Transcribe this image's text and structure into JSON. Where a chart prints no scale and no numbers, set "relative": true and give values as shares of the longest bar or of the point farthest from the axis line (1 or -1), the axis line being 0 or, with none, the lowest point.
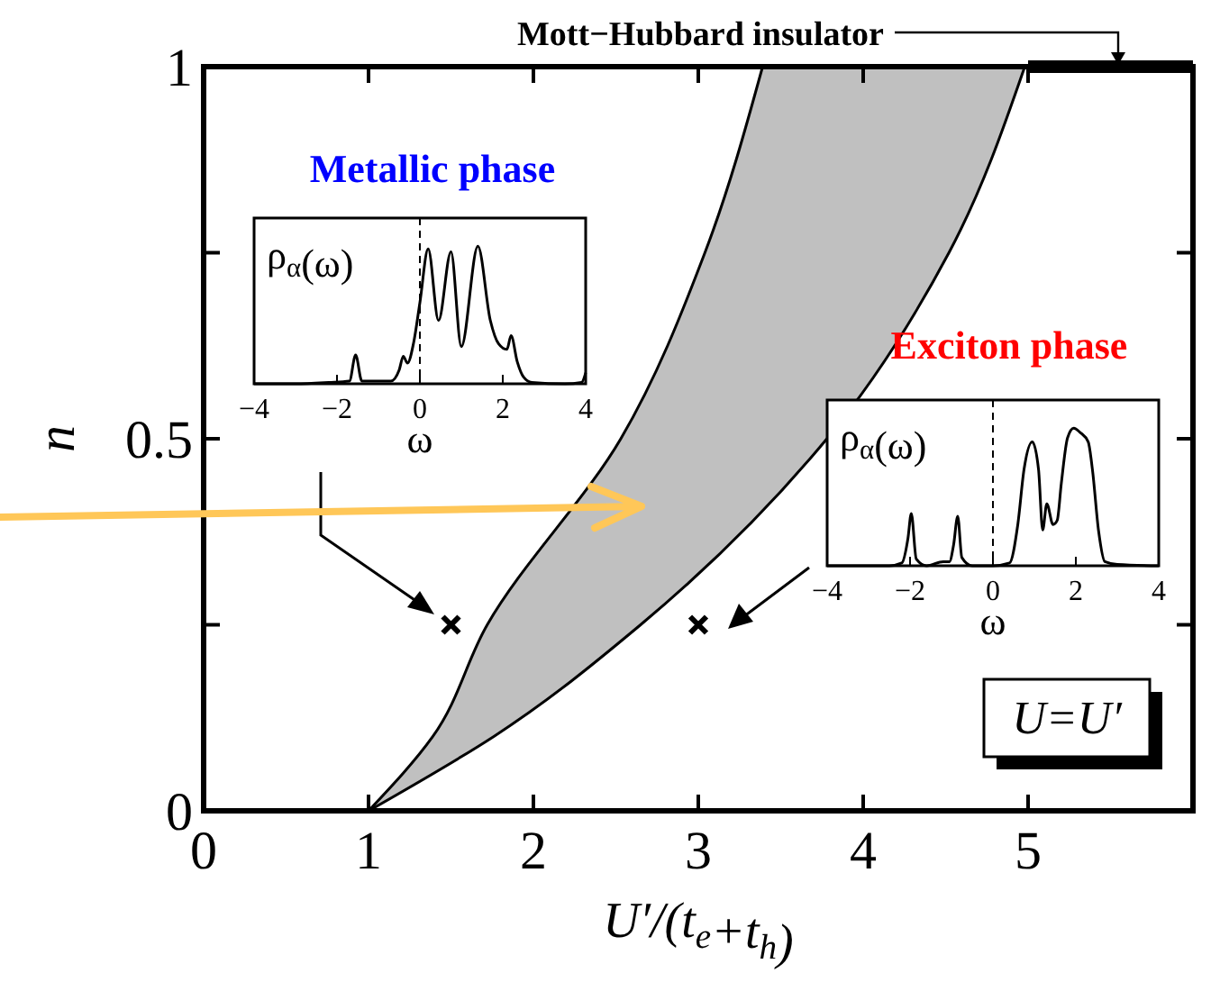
{
  "chart_data": [
    {
      "type": "line",
      "xlabel": "U′/(t$_{e}$+t$_{h}$)",
      "ylabel": "n",
      "xlim": [
        0,
        6
      ],
      "ylim": [
        0,
        1
      ],
      "xticks": [
        0,
        1,
        2,
        3,
        4,
        5
      ],
      "yticks": [
        0,
        {
          "value": 0.25,
          "label": null
        },
        0.5,
        {
          "value": 0.75,
          "label": null
        },
        1
      ],
      "series": [
        {
          "color": "#000000",
          "x": [
            1,
            1.39,
            1.72,
            2.53,
            3.04,
            3.39
          ],
          "values": [
            0,
            0.1,
            0.25,
            0.5,
            0.75,
            1
          ]
        },
        {
          "color": "#000000",
          "x": [
            1,
            1.76,
            2.65,
            3.78,
            4.52,
            4.98
          ],
          "values": [
            0,
            0.1,
            0.25,
            0.5,
            0.75,
            1
          ]
        },
        {
          "name": "Mott−Hubbard insulator",
          "color": "#000000",
          "x": [
            5,
            6
          ],
          "values": [
            1,
            1
          ]
        },
        {
          "type": "scatter",
          "marker": "cross",
          "color": "#000000",
          "x": [
            1.5,
            3
          ],
          "values": [
            0.25,
            0.25
          ]
        }
      ],
      "annotations": [
        "Metallic phase",
        "Exciton phase",
        "U=U′"
      ]
    },
    {
      "type": "line",
      "relative": true,
      "ylabel": "ρ$_{α}$(ω)",
      "xlabel": "ω",
      "xlim": [
        -4,
        4
      ],
      "xticks": [
        -4,
        -2,
        0,
        2,
        4
      ],
      "tick_labels": "x",
      "ref_lines": [
        {
          "axis": "x",
          "value": 0,
          "line_style": "dashed"
        }
      ],
      "series": [
        {
          "color": "#000000",
          "x": [
            -4,
            -3,
            -2.2,
            -1.7,
            -1.55,
            -1.4,
            -0.7,
            -0.5,
            -0.4,
            -0.3,
            -0.15,
            0,
            0.2,
            0.45,
            0.75,
            1.0,
            1.4,
            1.7,
            1.9,
            2.1,
            2.2,
            2.35,
            2.5,
            2.7,
            3.5,
            3.9,
            4
          ],
          "values": [
            0,
            0,
            0.01,
            0.02,
            0.21,
            0.02,
            0.02,
            0.1,
            0.2,
            0.15,
            0.3,
            0.59,
            0.98,
            0.46,
            0.96,
            0.27,
            1,
            0.46,
            0.29,
            0.25,
            0.35,
            0.16,
            0.05,
            0.01,
            0,
            0.01,
            0.08
          ]
        }
      ]
    },
    {
      "type": "line",
      "relative": true,
      "ylabel": "ρ$_{α}$(ω)",
      "xlabel": "ω",
      "xlim": [
        -4,
        4
      ],
      "xticks": [
        -4,
        -2,
        0,
        2,
        4
      ],
      "tick_labels": "x",
      "ref_lines": [
        {
          "axis": "x",
          "value": 0,
          "line_style": "dashed"
        }
      ],
      "series": [
        {
          "color": "#000000",
          "x": [
            -4,
            -2.5,
            -2.2,
            -2.05,
            -1.97,
            -1.85,
            -1.6,
            -1.2,
            -1.05,
            -0.95,
            -0.85,
            -0.75,
            -0.5,
            0,
            0.4,
            0.6,
            0.75,
            0.95,
            1.1,
            1.2,
            1.3,
            1.45,
            1.55,
            1.65,
            1.8,
            1.95,
            2.1,
            2.3,
            2.4,
            2.55,
            2.7,
            3,
            4
          ],
          "values": [
            0,
            0,
            0.02,
            0.2,
            0.38,
            0.05,
            0,
            0.03,
            0.03,
            0.15,
            0.36,
            0.06,
            0,
            0,
            0.02,
            0.3,
            0.7,
            0.9,
            0.7,
            0.26,
            0.45,
            0.3,
            0.33,
            0.6,
            0.93,
            1,
            0.97,
            0.9,
            0.7,
            0.25,
            0.03,
            0.01,
            0
          ]
        }
      ]
    }
  ]
}
